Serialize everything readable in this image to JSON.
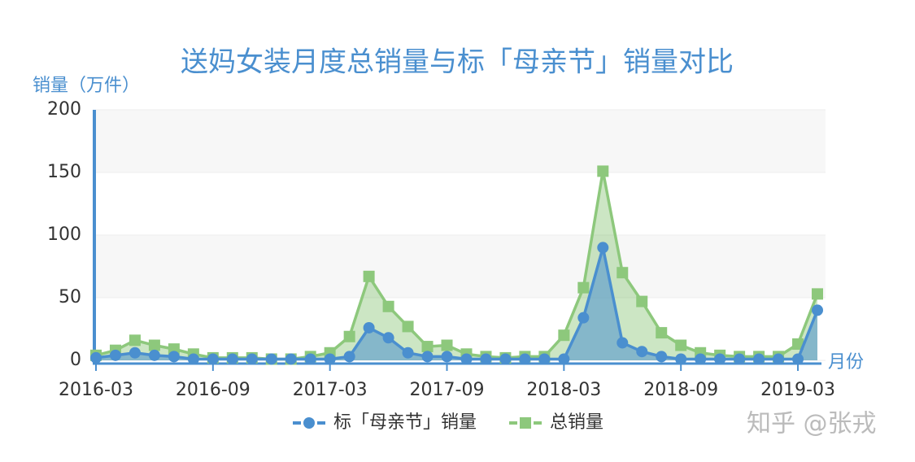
{
  "chart_data": {
    "type": "line",
    "title": "送妈女装月度总销量与标「母亲节」销量对比",
    "y_label": "销量（万件）",
    "x_label": "月份",
    "watermark": "知乎 @张戎",
    "categories": [
      "2016-03",
      null,
      null,
      null,
      null,
      null,
      "2016-09",
      null,
      null,
      null,
      null,
      null,
      "2017-03",
      null,
      null,
      null,
      null,
      null,
      "2017-09",
      null,
      null,
      null,
      null,
      null,
      "2018-03",
      null,
      null,
      null,
      null,
      null,
      "2018-09",
      null,
      null,
      null,
      null,
      null,
      "2019-03",
      null
    ],
    "series": [
      {
        "name": "标「母亲节」销量",
        "color": "#4a8fcf",
        "marker": "circle",
        "values": [
          2,
          4,
          6,
          4,
          3,
          1,
          1,
          1,
          1,
          1,
          1,
          1,
          1,
          3,
          26,
          18,
          6,
          3,
          3,
          1,
          1,
          1,
          1,
          1,
          1,
          34,
          90,
          14,
          7,
          3,
          1,
          1,
          1,
          1,
          1,
          1,
          1,
          40
        ]
      },
      {
        "name": "总销量",
        "color": "#8dc87c",
        "marker": "square",
        "values": [
          4,
          8,
          16,
          12,
          9,
          5,
          2,
          2,
          2,
          1,
          1,
          3,
          6,
          19,
          67,
          43,
          27,
          11,
          12,
          5,
          3,
          2,
          3,
          3,
          20,
          58,
          151,
          70,
          47,
          22,
          12,
          6,
          4,
          3,
          3,
          3,
          13,
          53
        ]
      }
    ],
    "ylim": [
      0,
      200
    ],
    "yticks": [
      0,
      50,
      100,
      150,
      200
    ],
    "grid": true,
    "area": true
  }
}
